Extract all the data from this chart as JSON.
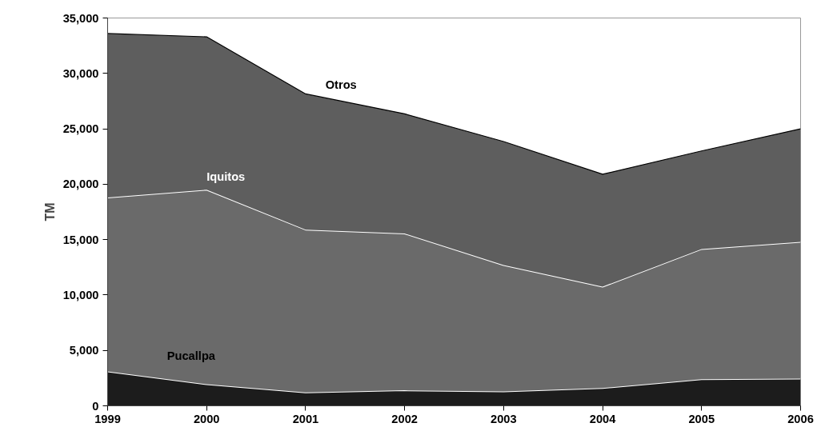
{
  "chart_data": {
    "type": "area",
    "stacked": true,
    "ylabel": "TM",
    "categories": [
      "1999",
      "2000",
      "2001",
      "2002",
      "2003",
      "2004",
      "2005",
      "2006"
    ],
    "series": [
      {
        "name": "Pucallpa",
        "color": "#1c1c1c",
        "values": [
          3100,
          1950,
          1200,
          1400,
          1300,
          1600,
          2400,
          2450
        ]
      },
      {
        "name": "Iquitos",
        "color": "#6a6a6a",
        "values": [
          15700,
          17550,
          14700,
          14150,
          11400,
          9150,
          11750,
          12350
        ]
      },
      {
        "name": "Otros",
        "color": "#5e5e5e",
        "values": [
          14800,
          13800,
          12250,
          10800,
          11150,
          10150,
          8850,
          10200
        ]
      }
    ],
    "ylim": [
      0,
      35000
    ],
    "yticks": [
      {
        "value": 0,
        "label": "0"
      },
      {
        "value": 5000,
        "label": "5,000"
      },
      {
        "value": 10000,
        "label": "10,000"
      },
      {
        "value": 15000,
        "label": "15,000"
      },
      {
        "value": 20000,
        "label": "20,000"
      },
      {
        "value": 25000,
        "label": "25,000"
      },
      {
        "value": 30000,
        "label": "30,000"
      },
      {
        "value": 35000,
        "label": "35,000"
      }
    ],
    "grid": false
  }
}
